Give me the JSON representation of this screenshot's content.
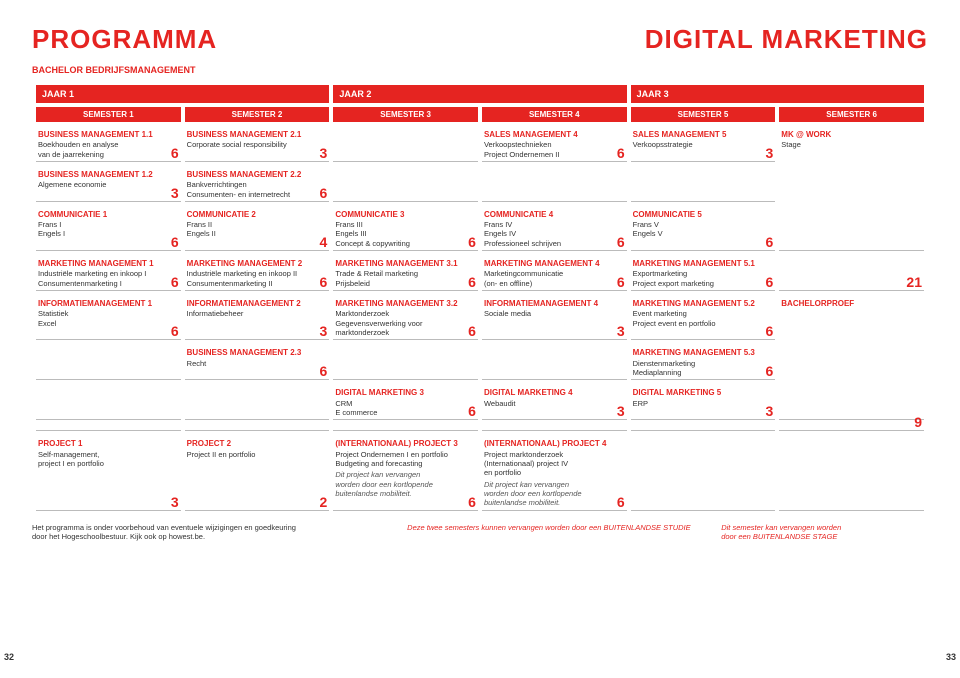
{
  "titles": {
    "left": "PROGRAMMA",
    "right": "DIGITAL MARKETING",
    "subtitle": "BACHELOR BEDRIJFSMANAGEMENT"
  },
  "years": [
    "JAAR 1",
    "JAAR 2",
    "JAAR 3"
  ],
  "semesters": [
    "SEMESTER 1",
    "SEMESTER 2",
    "SEMESTER 3",
    "SEMESTER 4",
    "SEMESTER 5",
    "SEMESTER 6"
  ],
  "modules": {
    "r1c1": {
      "title": "BUSINESS MANAGEMENT 1.1",
      "lines": [
        "Boekhouden en analyse",
        "van de jaarrekening"
      ],
      "credits": "6"
    },
    "r1c2": {
      "title": "BUSINESS MANAGEMENT 2.1",
      "lines": [
        "Corporate social responsibility"
      ],
      "credits": "3"
    },
    "r1c4": {
      "title": "SALES MANAGEMENT 4",
      "lines": [
        "Verkoopstechnieken",
        "Project Ondernemen II"
      ],
      "credits": "6"
    },
    "r1c5": {
      "title": "SALES MANAGEMENT 5",
      "lines": [
        "Verkoopsstrategie"
      ],
      "credits": "3"
    },
    "r1c6": {
      "title": "MK @ WORK",
      "lines": [
        "Stage"
      ],
      "credits": ""
    },
    "r2c1": {
      "title": "BUSINESS MANAGEMENT 1.2",
      "lines": [
        "Algemene economie"
      ],
      "credits": "3"
    },
    "r2c2": {
      "title": "BUSINESS MANAGEMENT 2.2",
      "lines": [
        "Bankverrichtingen",
        "Consumenten- en internetrecht"
      ],
      "credits": "6"
    },
    "r3c1": {
      "title": "COMMUNICATIE 1",
      "lines": [
        "Frans I",
        "Engels I"
      ],
      "credits": "6"
    },
    "r3c2": {
      "title": "COMMUNICATIE 2",
      "lines": [
        "Frans II",
        "Engels II"
      ],
      "credits": "4"
    },
    "r3c3": {
      "title": "COMMUNICATIE 3",
      "lines": [
        "Frans III",
        "Engels III",
        "Concept & copywriting"
      ],
      "credits": "6"
    },
    "r3c4": {
      "title": "COMMUNICATIE 4",
      "lines": [
        "Frans IV",
        "Engels IV",
        "Professioneel schrijven"
      ],
      "credits": "6"
    },
    "r3c5": {
      "title": "COMMUNICATIE 5",
      "lines": [
        "Frans V",
        "Engels V"
      ],
      "credits": "6"
    },
    "r4c1": {
      "title": "MARKETING MANAGEMENT 1",
      "lines": [
        "Industriële marketing en inkoop I",
        "Consumentenmarketing I"
      ],
      "credits": "6"
    },
    "r4c2": {
      "title": "MARKETING MANAGEMENT 2",
      "lines": [
        "Industriële marketing en inkoop II",
        "Consumentenmarketing II"
      ],
      "credits": "6"
    },
    "r4c3": {
      "title": "MARKETING MANAGEMENT 3.1",
      "lines": [
        "Trade & Retail marketing",
        "Prijsbeleid"
      ],
      "credits": "6"
    },
    "r4c4": {
      "title": "MARKETING MANAGEMENT 4",
      "lines": [
        "Marketingcommunicatie",
        "(on- en offline)"
      ],
      "credits": "6"
    },
    "r4c5": {
      "title": "MARKETING MANAGEMENT 5.1",
      "lines": [
        "Exportmarketing",
        "Project export marketing"
      ],
      "credits": "6"
    },
    "r4c6": {
      "credits": "21"
    },
    "r5c1": {
      "title": "INFORMATIEMANAGEMENT 1",
      "lines": [
        "Statistiek",
        "Excel"
      ],
      "credits": "6"
    },
    "r5c2": {
      "title": "INFORMATIEMANAGEMENT 2",
      "lines": [
        "Informatiebeheer"
      ],
      "credits": "3"
    },
    "r5c3": {
      "title": "MARKETING MANAGEMENT 3.2",
      "lines": [
        "Marktonderzoek",
        "Gegevensverwerking voor",
        "marktonderzoek"
      ],
      "credits": "6"
    },
    "r5c4": {
      "title": "INFORMATIEMANAGEMENT 4",
      "lines": [
        "Sociale media"
      ],
      "credits": "3"
    },
    "r5c5": {
      "title": "MARKETING MANAGEMENT 5.2",
      "lines": [
        "Event marketing",
        "Project event en portfolio"
      ],
      "credits": "6"
    },
    "r5c6": {
      "title": "BACHELORPROEF",
      "lines": [],
      "credits": ""
    },
    "r6c2": {
      "title": "BUSINESS MANAGEMENT 2.3",
      "lines": [
        "Recht"
      ],
      "credits": "6"
    },
    "r6c5": {
      "title": "MARKETING MANAGEMENT 5.3",
      "lines": [
        "Dienstenmarketing",
        "Mediaplanning"
      ],
      "credits": "6"
    },
    "r7c3": {
      "title": "DIGITAL MARKETING 3",
      "lines": [
        "CRM",
        "E commerce"
      ],
      "credits": "6"
    },
    "r7c4": {
      "title": "DIGITAL MARKETING 4",
      "lines": [
        "Webaudit"
      ],
      "credits": "3"
    },
    "r7c5": {
      "title": "DIGITAL MARKETING 5",
      "lines": [
        "ERP"
      ],
      "credits": "3"
    },
    "r7c6": {
      "credits": "9"
    },
    "r8c1": {
      "title": "PROJECT 1",
      "lines": [
        "Self-management,",
        "project I en portfolio"
      ],
      "credits": "3"
    },
    "r8c2": {
      "title": "PROJECT 2",
      "lines": [
        "Project II en portfolio"
      ],
      "credits": "2"
    },
    "r8c3": {
      "title": "(INTERNATIONAAL) PROJECT 3",
      "lines": [
        "Project Ondernemen I en portfolio",
        "Budgeting and forecasting"
      ],
      "italic": [
        "Dit project kan vervangen",
        "worden door een kortlopende",
        "buitenlandse mobiliteit."
      ],
      "credits": "6"
    },
    "r8c4": {
      "title": "(INTERNATIONAAL) PROJECT 4",
      "lines": [
        "Project marktonderzoek",
        "(Internationaal) project IV",
        "en portfolio"
      ],
      "italic": [
        "Dit project kan vervangen",
        "worden door een kortlopende",
        "buitenlandse mobiliteit."
      ],
      "credits": "6"
    }
  },
  "footer": {
    "left1": "Het programma is onder voorbehoud van eventuele wijzigingen en goedkeuring",
    "left2": "door het Hogeschoolbestuur. Kijk ook op howest.be.",
    "mid": "Deze twee semesters kunnen vervangen worden door een BUITENLANDSE STUDIE",
    "right1": "Dit semester kan vervangen worden",
    "right2": "door een BUITENLANDSE STAGE"
  },
  "pageLeft": "32",
  "pageRight": "33"
}
